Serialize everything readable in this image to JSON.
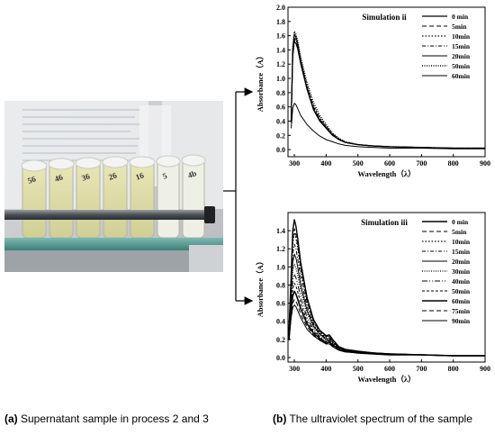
{
  "captions": {
    "a_tag": "(a)",
    "a_text": " Supernatant sample in process 2 and 3",
    "b_tag": "(b)",
    "b_text": " The ultraviolet spectrum of the sample"
  },
  "photo": {
    "tube_labels": [
      "56",
      "46",
      "36",
      "26",
      "16",
      "5",
      "4b"
    ]
  },
  "chart_data": [
    {
      "type": "line",
      "title": "Simulation ii",
      "xlabel": "Wavelength（λ）",
      "ylabel": "Absorbance（A）",
      "xlim": [
        280,
        900
      ],
      "ylim": [
        -0.1,
        2.0
      ],
      "xticks": [
        300,
        400,
        500,
        600,
        700,
        800,
        900
      ],
      "yticks": [
        0.0,
        0.2,
        0.4,
        0.6,
        0.8,
        1.0,
        1.2,
        1.4,
        1.6,
        1.8,
        2.0
      ],
      "ytick_labels": [
        "0.0",
        "0.2",
        "0.4",
        "0.6",
        "0.8",
        "1.0",
        "1.2",
        "1.4",
        "1.6",
        "1.8",
        "2.0"
      ],
      "legend": "top-right",
      "x": [
        290,
        295,
        300,
        305,
        310,
        320,
        340,
        360,
        380,
        400,
        420,
        440,
        460,
        500,
        550,
        600,
        700,
        800,
        900
      ],
      "series": [
        {
          "name": "0 min",
          "dash": "",
          "width": 1.2,
          "values": [
            0.4,
            1.4,
            1.62,
            1.58,
            1.5,
            1.25,
            0.85,
            0.56,
            0.4,
            0.3,
            0.2,
            0.14,
            0.1,
            0.07,
            0.05,
            0.04,
            0.03,
            0.02,
            0.02
          ]
        },
        {
          "name": "5min",
          "dash": "5,3",
          "width": 1,
          "values": [
            0.4,
            1.35,
            1.55,
            1.52,
            1.45,
            1.22,
            0.86,
            0.58,
            0.42,
            0.31,
            0.21,
            0.14,
            0.1,
            0.07,
            0.05,
            0.04,
            0.03,
            0.02,
            0.02
          ]
        },
        {
          "name": "10min",
          "dash": "1.5,2",
          "width": 1.2,
          "values": [
            0.4,
            1.4,
            1.6,
            1.56,
            1.48,
            1.26,
            0.9,
            0.62,
            0.45,
            0.33,
            0.22,
            0.15,
            0.11,
            0.07,
            0.05,
            0.04,
            0.03,
            0.02,
            0.02
          ]
        },
        {
          "name": "15min",
          "dash": "4,2,1,2",
          "width": 1,
          "values": [
            0.4,
            1.38,
            1.56,
            1.53,
            1.46,
            1.24,
            0.88,
            0.6,
            0.44,
            0.32,
            0.22,
            0.15,
            0.1,
            0.07,
            0.05,
            0.04,
            0.03,
            0.02,
            0.02
          ]
        },
        {
          "name": "20min",
          "dash": "",
          "width": 1,
          "values": [
            0.38,
            1.3,
            1.52,
            1.49,
            1.42,
            1.2,
            0.84,
            0.57,
            0.41,
            0.3,
            0.2,
            0.14,
            0.1,
            0.07,
            0.05,
            0.04,
            0.03,
            0.02,
            0.02
          ]
        },
        {
          "name": "50min",
          "dash": "1,1.5",
          "width": 1.4,
          "values": [
            0.4,
            1.45,
            1.66,
            1.62,
            1.54,
            1.3,
            0.94,
            0.66,
            0.48,
            0.35,
            0.23,
            0.16,
            0.11,
            0.07,
            0.05,
            0.04,
            0.03,
            0.02,
            0.02
          ]
        },
        {
          "name": "60min",
          "dash": "",
          "width": 1,
          "values": [
            0.3,
            0.58,
            0.65,
            0.63,
            0.58,
            0.48,
            0.35,
            0.26,
            0.19,
            0.14,
            0.11,
            0.08,
            0.06,
            0.04,
            0.03,
            0.02,
            0.02,
            0.01,
            0.01
          ]
        }
      ]
    },
    {
      "type": "line",
      "title": "Simulation iii",
      "xlabel": "Wavelength（λ）",
      "ylabel": "Absorbance（A）",
      "xlim": [
        280,
        900
      ],
      "ylim": [
        -0.05,
        1.6
      ],
      "xticks": [
        300,
        400,
        500,
        600,
        700,
        800,
        900
      ],
      "yticks": [
        0.0,
        0.2,
        0.4,
        0.6,
        0.8,
        1.0,
        1.2,
        1.4
      ],
      "ytick_labels": [
        "0.0",
        "0.2",
        "0.4",
        "0.6",
        "0.8",
        "1.0",
        "1.2",
        "1.4"
      ],
      "legend": "top-right",
      "x": [
        283,
        290,
        295,
        300,
        305,
        310,
        320,
        340,
        360,
        380,
        400,
        410,
        420,
        440,
        460,
        500,
        550,
        600,
        700,
        800,
        900
      ],
      "series": [
        {
          "name": "0 min",
          "dash": "",
          "width": 1.4,
          "values": [
            0.3,
            0.9,
            1.4,
            1.52,
            1.45,
            1.33,
            1.05,
            0.66,
            0.42,
            0.3,
            0.24,
            0.25,
            0.2,
            0.12,
            0.09,
            0.07,
            0.05,
            0.04,
            0.03,
            0.02,
            0.02
          ]
        },
        {
          "name": "5min",
          "dash": "5,3",
          "width": 1,
          "values": [
            0.28,
            0.85,
            1.3,
            1.42,
            1.36,
            1.25,
            0.99,
            0.62,
            0.4,
            0.29,
            0.23,
            0.24,
            0.19,
            0.12,
            0.09,
            0.07,
            0.05,
            0.04,
            0.03,
            0.02,
            0.02
          ]
        },
        {
          "name": "10min",
          "dash": "1.5,2",
          "width": 1.2,
          "values": [
            0.28,
            0.84,
            1.26,
            1.38,
            1.32,
            1.22,
            0.96,
            0.61,
            0.39,
            0.28,
            0.22,
            0.23,
            0.19,
            0.12,
            0.09,
            0.07,
            0.05,
            0.04,
            0.03,
            0.02,
            0.02
          ]
        },
        {
          "name": "15min",
          "dash": "4,2,1,2",
          "width": 1,
          "values": [
            0.26,
            0.78,
            1.15,
            1.25,
            1.2,
            1.1,
            0.88,
            0.56,
            0.37,
            0.27,
            0.21,
            0.22,
            0.18,
            0.11,
            0.08,
            0.06,
            0.05,
            0.04,
            0.03,
            0.02,
            0.02
          ]
        },
        {
          "name": "20min",
          "dash": "",
          "width": 1,
          "values": [
            0.25,
            0.73,
            1.05,
            1.14,
            1.1,
            1.01,
            0.8,
            0.52,
            0.35,
            0.26,
            0.2,
            0.21,
            0.17,
            0.11,
            0.08,
            0.06,
            0.05,
            0.04,
            0.03,
            0.02,
            0.02
          ]
        },
        {
          "name": "30min",
          "dash": "1,1.5",
          "width": 1.2,
          "values": [
            0.24,
            0.68,
            0.96,
            1.03,
            0.99,
            0.92,
            0.74,
            0.49,
            0.33,
            0.25,
            0.19,
            0.2,
            0.16,
            0.1,
            0.08,
            0.06,
            0.05,
            0.04,
            0.03,
            0.02,
            0.02
          ]
        },
        {
          "name": "40min",
          "dash": "6,2,1,2,1,2",
          "width": 1,
          "values": [
            0.23,
            0.62,
            0.85,
            0.92,
            0.88,
            0.82,
            0.66,
            0.44,
            0.31,
            0.23,
            0.18,
            0.19,
            0.15,
            0.1,
            0.07,
            0.06,
            0.04,
            0.03,
            0.03,
            0.02,
            0.02
          ]
        },
        {
          "name": "50min",
          "dash": "3,2",
          "width": 1,
          "values": [
            0.22,
            0.57,
            0.76,
            0.82,
            0.79,
            0.73,
            0.6,
            0.4,
            0.29,
            0.22,
            0.17,
            0.18,
            0.15,
            0.09,
            0.07,
            0.05,
            0.04,
            0.03,
            0.03,
            0.02,
            0.02
          ]
        },
        {
          "name": "60min",
          "dash": "",
          "width": 1.6,
          "values": [
            0.21,
            0.53,
            0.68,
            0.73,
            0.7,
            0.65,
            0.54,
            0.37,
            0.27,
            0.21,
            0.16,
            0.17,
            0.14,
            0.09,
            0.07,
            0.05,
            0.04,
            0.03,
            0.03,
            0.02,
            0.02
          ]
        },
        {
          "name": "75min",
          "dash": "5,3",
          "width": 1,
          "values": [
            0.2,
            0.48,
            0.6,
            0.64,
            0.62,
            0.58,
            0.48,
            0.34,
            0.25,
            0.2,
            0.15,
            0.16,
            0.13,
            0.09,
            0.07,
            0.05,
            0.04,
            0.03,
            0.03,
            0.02,
            0.02
          ]
        },
        {
          "name": "90min",
          "dash": "",
          "width": 1,
          "values": [
            0.19,
            0.44,
            0.55,
            0.58,
            0.56,
            0.52,
            0.44,
            0.31,
            0.24,
            0.19,
            0.15,
            0.15,
            0.12,
            0.08,
            0.06,
            0.05,
            0.04,
            0.03,
            0.03,
            0.02,
            0.02
          ]
        }
      ]
    }
  ]
}
